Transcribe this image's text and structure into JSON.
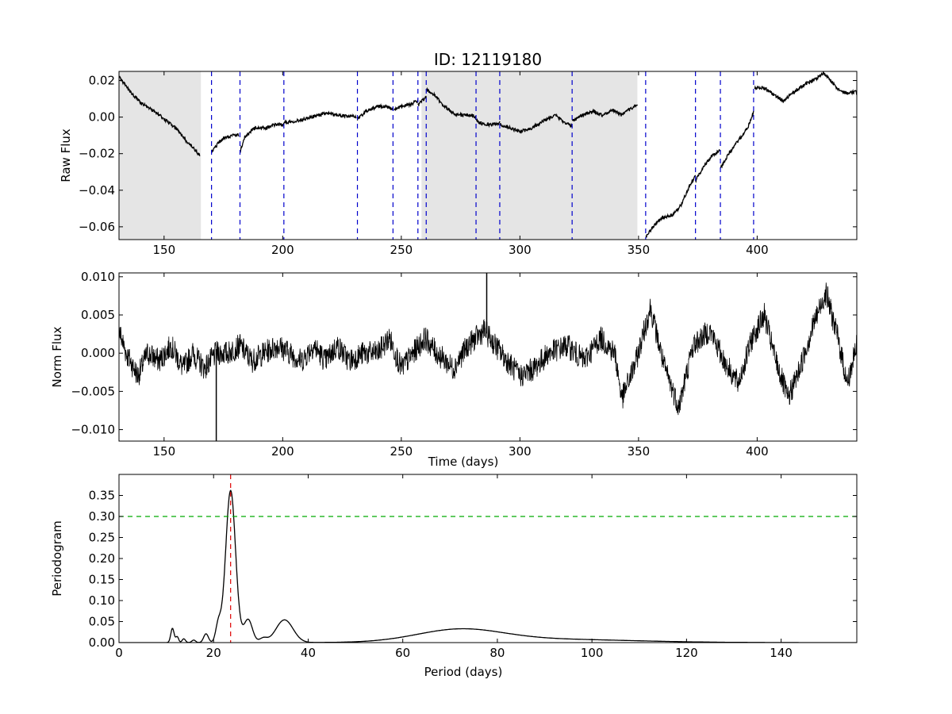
{
  "title": "ID: 12119180",
  "chart_data": [
    {
      "panel": "raw",
      "type": "line",
      "title": "ID: 12119180",
      "xlabel": "",
      "ylabel": "Raw Flux",
      "xlim": [
        131,
        442
      ],
      "ylim": [
        -0.067,
        0.025
      ],
      "xticks": [
        150,
        200,
        250,
        300,
        350,
        400
      ],
      "yticks": [
        -0.06,
        -0.04,
        -0.02,
        0.0,
        0.02
      ],
      "ytick_labels": [
        "−0.06",
        "−0.04",
        "−0.02",
        "0.00",
        "0.02"
      ],
      "shaded_regions": [
        [
          131,
          165.5
        ],
        [
          258.5,
          349.5
        ]
      ],
      "shade_color": "#e5e5e5",
      "quarter_breaks": [
        170,
        182,
        200.5,
        231.5,
        246.5,
        257,
        260.5,
        281.5,
        291.5,
        322,
        353,
        374,
        384.5,
        398.5
      ],
      "break_color": "#0000cc",
      "line_color": "#000000",
      "segments": [
        [
          [
            131,
            0.022
          ],
          [
            135,
            0.015
          ],
          [
            140,
            0.008
          ],
          [
            145,
            0.004
          ],
          [
            150,
            -0.001
          ],
          [
            155,
            -0.006
          ],
          [
            160,
            -0.014
          ],
          [
            163,
            -0.018
          ],
          [
            165,
            -0.021
          ]
        ],
        [
          [
            170,
            -0.019
          ],
          [
            173,
            -0.014
          ],
          [
            176,
            -0.011
          ],
          [
            179,
            -0.01
          ],
          [
            181.5,
            -0.01
          ]
        ],
        [
          [
            182,
            -0.019
          ],
          [
            184,
            -0.011
          ],
          [
            188,
            -0.006
          ],
          [
            193,
            -0.006
          ],
          [
            197,
            -0.004
          ],
          [
            200.5,
            -0.004
          ]
        ],
        [
          [
            200.5,
            -0.003
          ],
          [
            206,
            -0.002
          ],
          [
            212,
            0.0
          ],
          [
            218,
            0.002
          ],
          [
            224,
            0.001
          ],
          [
            231,
            0.0
          ]
        ],
        [
          [
            231.5,
            -0.001
          ],
          [
            235,
            0.003
          ],
          [
            240,
            0.006
          ],
          [
            244,
            0.006
          ],
          [
            246.5,
            0.004
          ]
        ],
        [
          [
            247,
            0.004
          ],
          [
            250,
            0.006
          ],
          [
            254,
            0.007
          ],
          [
            257,
            0.009
          ]
        ],
        [
          [
            257,
            0.006
          ],
          [
            258.5,
            0.009
          ],
          [
            260.5,
            0.011
          ]
        ],
        [
          [
            260.5,
            0.015
          ],
          [
            264,
            0.012
          ],
          [
            268,
            0.006
          ],
          [
            272,
            0.002
          ],
          [
            276,
            0.001
          ],
          [
            280,
            0.001
          ],
          [
            281.5,
            0.0
          ]
        ],
        [
          [
            281.5,
            -0.002
          ],
          [
            285,
            -0.004
          ],
          [
            289,
            -0.004
          ],
          [
            291.5,
            -0.003
          ]
        ],
        [
          [
            291.5,
            -0.004
          ],
          [
            296,
            -0.006
          ],
          [
            300,
            -0.008
          ],
          [
            305,
            -0.006
          ],
          [
            310,
            -0.002
          ],
          [
            315,
            0.001
          ],
          [
            319,
            -0.003
          ],
          [
            322,
            -0.005
          ]
        ],
        [
          [
            322,
            -0.002
          ],
          [
            326,
            0.001
          ],
          [
            331,
            0.003
          ],
          [
            335,
            0.001
          ],
          [
            339,
            0.004
          ],
          [
            343,
            0.001
          ],
          [
            346,
            0.004
          ],
          [
            349.5,
            0.007
          ]
        ],
        [
          [
            353,
            -0.066
          ],
          [
            356,
            -0.06
          ],
          [
            360,
            -0.055
          ],
          [
            364,
            -0.054
          ],
          [
            368,
            -0.048
          ],
          [
            371,
            -0.039
          ],
          [
            374,
            -0.032
          ]
        ],
        [
          [
            374,
            -0.035
          ],
          [
            377,
            -0.028
          ],
          [
            381,
            -0.021
          ],
          [
            384.5,
            -0.018
          ]
        ],
        [
          [
            384.5,
            -0.028
          ],
          [
            388,
            -0.02
          ],
          [
            392,
            -0.013
          ],
          [
            396,
            -0.006
          ],
          [
            398.5,
            0.003
          ]
        ],
        [
          [
            399,
            0.016
          ],
          [
            403,
            0.016
          ],
          [
            407,
            0.012
          ],
          [
            411,
            0.009
          ],
          [
            415,
            0.013
          ],
          [
            420,
            0.018
          ],
          [
            425,
            0.021
          ],
          [
            428,
            0.024
          ],
          [
            431,
            0.02
          ],
          [
            434,
            0.015
          ],
          [
            438,
            0.013
          ],
          [
            442,
            0.014
          ]
        ]
      ]
    },
    {
      "panel": "norm",
      "type": "line",
      "xlabel": "Time (days)",
      "ylabel": "Norm Flux",
      "xlim": [
        131,
        442
      ],
      "ylim": [
        -0.0115,
        0.0105
      ],
      "xticks": [
        150,
        200,
        250,
        300,
        350,
        400
      ],
      "yticks": [
        -0.01,
        -0.005,
        0.0,
        0.005,
        0.01
      ],
      "ytick_labels": [
        "−0.010",
        "−0.005",
        "0.000",
        "0.005",
        "0.010"
      ],
      "line_color": "#000000",
      "envelope": [
        [
          131,
          0.003
        ],
        [
          134,
          0.0
        ],
        [
          139,
          -0.003
        ],
        [
          143,
          0.0
        ],
        [
          148,
          -0.001
        ],
        [
          153,
          0.001
        ],
        [
          158,
          -0.002
        ],
        [
          162,
          0.0
        ],
        [
          167,
          -0.002
        ],
        [
          172,
          0.0
        ],
        [
          177,
          0.0
        ],
        [
          182,
          0.001
        ],
        [
          187,
          -0.001
        ],
        [
          192,
          0.0
        ],
        [
          198,
          0.001
        ],
        [
          203,
          0.0
        ],
        [
          208,
          -0.001
        ],
        [
          213,
          0.001
        ],
        [
          218,
          -0.001
        ],
        [
          223,
          0.001
        ],
        [
          228,
          -0.001
        ],
        [
          234,
          0.0
        ],
        [
          240,
          0.0
        ],
        [
          245,
          0.002
        ],
        [
          250,
          -0.002
        ],
        [
          255,
          0.0
        ],
        [
          260,
          0.002
        ],
        [
          265,
          0.0
        ],
        [
          272,
          -0.002
        ],
        [
          278,
          0.001
        ],
        [
          285,
          0.003
        ],
        [
          292,
          0.0
        ],
        [
          300,
          -0.003
        ],
        [
          306,
          -0.002
        ],
        [
          312,
          0.0
        ],
        [
          320,
          0.001
        ],
        [
          327,
          -0.001
        ],
        [
          334,
          0.002
        ],
        [
          340,
          0.0
        ],
        [
          343,
          -0.006
        ],
        [
          349,
          -0.001
        ],
        [
          355,
          0.006
        ],
        [
          361,
          -0.002
        ],
        [
          367,
          -0.007
        ],
        [
          373,
          0.001
        ],
        [
          380,
          0.003
        ],
        [
          386,
          -0.001
        ],
        [
          392,
          -0.004
        ],
        [
          398,
          0.002
        ],
        [
          403,
          0.005
        ],
        [
          407,
          0.0
        ],
        [
          413,
          -0.006
        ],
        [
          418,
          -0.002
        ],
        [
          424,
          0.004
        ],
        [
          429,
          0.008
        ],
        [
          434,
          0.002
        ],
        [
          438,
          -0.004
        ],
        [
          442,
          0.001
        ]
      ],
      "noise_amplitude": 0.0016,
      "spikes": [
        [
          172,
          -0.0115
        ],
        [
          286,
          0.0105
        ]
      ]
    },
    {
      "panel": "periodogram",
      "type": "line",
      "xlabel": "Period (days)",
      "ylabel": "Periodogram",
      "xlim": [
        0,
        156
      ],
      "ylim": [
        0,
        0.4
      ],
      "xticks": [
        0,
        20,
        40,
        60,
        80,
        100,
        120,
        140
      ],
      "yticks": [
        0.0,
        0.05,
        0.1,
        0.15,
        0.2,
        0.25,
        0.3,
        0.35
      ],
      "ytick_labels": [
        "0.00",
        "0.05",
        "0.10",
        "0.15",
        "0.20",
        "0.25",
        "0.30",
        "0.35"
      ],
      "line_color": "#000000",
      "peaks": [
        {
          "center": 11.3,
          "height": 0.034,
          "width": 0.35
        },
        {
          "center": 12.3,
          "height": 0.014,
          "width": 0.3
        },
        {
          "center": 13.7,
          "height": 0.009,
          "width": 0.35
        },
        {
          "center": 15.8,
          "height": 0.006,
          "width": 0.4
        },
        {
          "center": 18.4,
          "height": 0.021,
          "width": 0.5
        },
        {
          "center": 21.0,
          "height": 0.042,
          "width": 0.55
        },
        {
          "center": 23.6,
          "height": 0.362,
          "width": 1.05
        },
        {
          "center": 27.3,
          "height": 0.055,
          "width": 0.9
        },
        {
          "center": 30.5,
          "height": 0.01,
          "width": 0.8
        },
        {
          "center": 35.0,
          "height": 0.054,
          "width": 1.8
        },
        {
          "center": 72.0,
          "height": 0.028,
          "width": 9.0
        },
        {
          "center": 90.0,
          "height": 0.008,
          "width": 18.0
        }
      ],
      "best_period": 23.6,
      "best_period_color": "#dd0000",
      "threshold": 0.3,
      "threshold_color": "#00aa00"
    }
  ]
}
